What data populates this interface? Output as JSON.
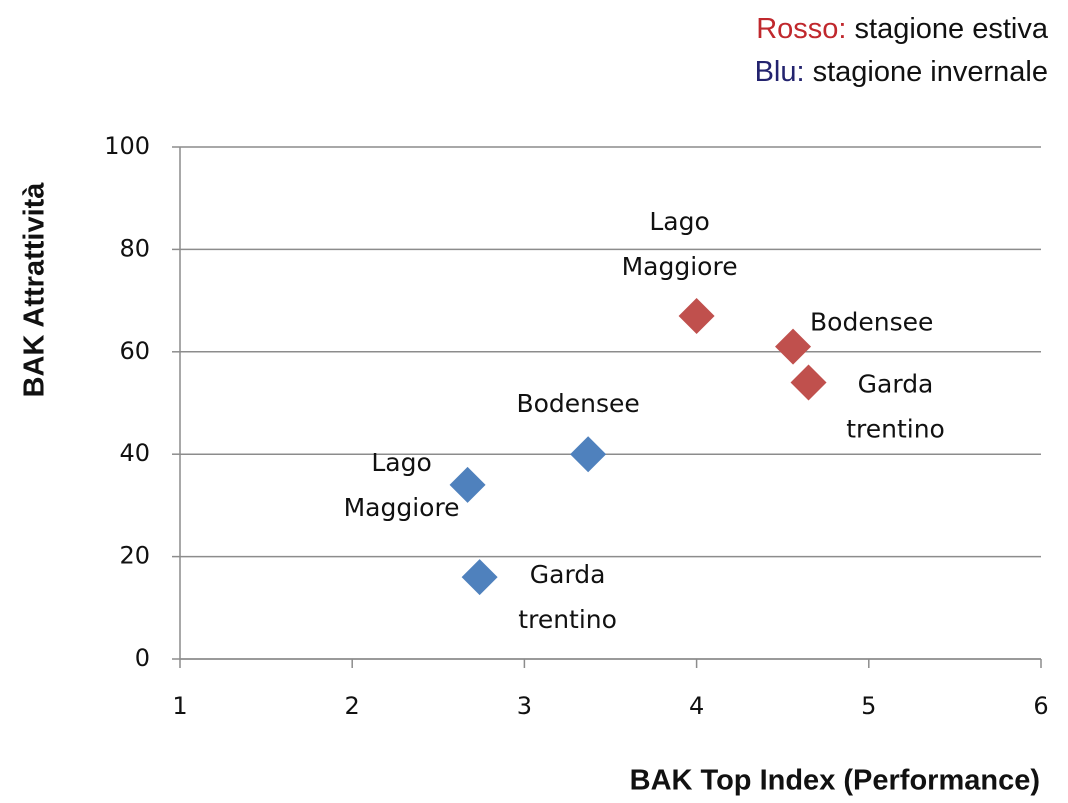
{
  "chart_data": {
    "type": "scatter",
    "xlabel": "BAK Top Index (Performance)",
    "ylabel": "BAK Attrattività",
    "xlim": [
      1,
      6
    ],
    "xticks": [
      1,
      2,
      3,
      4,
      5,
      6
    ],
    "ylim": [
      0,
      100
    ],
    "yticks": [
      0,
      20,
      40,
      60,
      80,
      100
    ],
    "grid": true,
    "series": [
      {
        "key": "Rosso:",
        "key_color": "#c0282d",
        "name": "stagione estiva",
        "color": "#c0504d",
        "x": [
          4.0,
          4.56,
          4.65
        ],
        "values": [
          67,
          61,
          54
        ],
        "labels": [
          [
            "Lago",
            "Maggiore"
          ],
          [
            "Bodensee"
          ],
          [
            "Garda",
            "trentino"
          ]
        ]
      },
      {
        "key": "Blu:",
        "key_color": "#23236e",
        "name": "stagione invernale",
        "color": "#4f81bd",
        "x": [
          3.37,
          2.67,
          2.74
        ],
        "values": [
          40,
          34,
          16
        ],
        "labels": [
          [
            "Bodensee"
          ],
          [
            "Lago",
            "Maggiore"
          ],
          [
            "Garda",
            "trentino"
          ]
        ]
      }
    ]
  }
}
